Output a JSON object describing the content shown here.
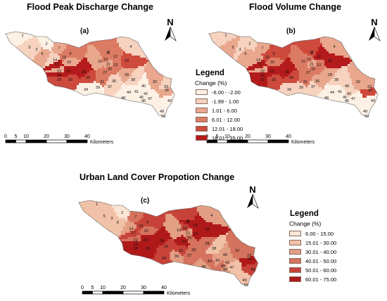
{
  "titles": {
    "peak": "Flood Peak Discharge Change",
    "volume": "Flood Volume Change",
    "urban": "Urban Land Cover Propotion Change"
  },
  "panels": {
    "a": "(a)",
    "b": "(b)",
    "c": "(c)"
  },
  "north_label": "N",
  "scale": {
    "ticks": [
      "0",
      "5",
      "10",
      "20",
      "30",
      "40"
    ],
    "unit": "Kilometers"
  },
  "legend_flood": {
    "title": "Legend",
    "subtitle": "Change (%)",
    "items": [
      {
        "label": "-6.00 - -2.00",
        "color": "#fdf0e4"
      },
      {
        "label": "-1.99 - 1.00",
        "color": "#f6d2bf"
      },
      {
        "label": "1.01 - 6.00",
        "color": "#e9a78e"
      },
      {
        "label": "6.01 - 12.00",
        "color": "#dc7b64"
      },
      {
        "label": "12.01 - 18.00",
        "color": "#cd4a3d"
      },
      {
        "label": "18.01 - 35.00",
        "color": "#b51b1c"
      }
    ]
  },
  "legend_urban": {
    "title": "Legend",
    "subtitle": "Change (%)",
    "items": [
      {
        "label": "6.00 - 15.00",
        "color": "#fbe6d6"
      },
      {
        "label": "15.01 - 30.00",
        "color": "#f1c2a8"
      },
      {
        "label": "30.01 - 40.00",
        "color": "#e39e84"
      },
      {
        "label": "40.01 - 50.00",
        "color": "#d5735e"
      },
      {
        "label": "50.01 - 60.00",
        "color": "#c74339"
      },
      {
        "label": "60.01 - 75.00",
        "color": "#b0191a"
      }
    ]
  },
  "zones": [
    {
      "id": "1"
    },
    {
      "id": "2"
    },
    {
      "id": "3"
    },
    {
      "id": "4"
    },
    {
      "id": "5"
    },
    {
      "id": "6"
    },
    {
      "id": "7"
    },
    {
      "id": "8"
    },
    {
      "id": "9"
    },
    {
      "id": "10"
    },
    {
      "id": "11"
    },
    {
      "id": "12"
    },
    {
      "id": "13"
    },
    {
      "id": "14"
    },
    {
      "id": "15"
    },
    {
      "id": "16"
    },
    {
      "id": "17"
    },
    {
      "id": "18"
    },
    {
      "id": "19"
    },
    {
      "id": "20"
    },
    {
      "id": "21"
    },
    {
      "id": "22"
    },
    {
      "id": "23"
    },
    {
      "id": "24"
    },
    {
      "id": "25"
    },
    {
      "id": "26"
    },
    {
      "id": "27"
    },
    {
      "id": "28"
    },
    {
      "id": "29"
    },
    {
      "id": "30"
    },
    {
      "id": "31"
    },
    {
      "id": "32"
    },
    {
      "id": "33"
    },
    {
      "id": "34"
    },
    {
      "id": "35"
    },
    {
      "id": "36"
    },
    {
      "id": "37"
    },
    {
      "id": "38"
    },
    {
      "id": "39"
    },
    {
      "id": "40"
    },
    {
      "id": "41"
    },
    {
      "id": "42"
    },
    {
      "id": "43"
    },
    {
      "id": "44"
    },
    {
      "id": "45"
    },
    {
      "id": "46"
    },
    {
      "id": "47"
    },
    {
      "id": "48"
    },
    {
      "id": "49"
    },
    {
      "id": "50"
    }
  ],
  "class_by_zone": {
    "a": [
      1,
      1,
      2,
      2,
      2,
      3,
      3,
      4,
      4,
      4,
      4,
      4,
      4,
      2,
      3,
      3,
      6,
      5,
      4,
      4,
      3,
      3,
      6,
      6,
      6,
      5,
      4,
      3,
      5,
      5,
      4,
      3,
      2,
      1,
      3,
      2,
      2,
      2,
      1,
      1,
      1,
      1,
      1,
      1,
      1,
      1,
      1,
      1,
      1,
      1
    ],
    "b": [
      2,
      2,
      2,
      3,
      3,
      3,
      3,
      5,
      5,
      4,
      5,
      6,
      4,
      3,
      4,
      4,
      6,
      6,
      5,
      4,
      3,
      3,
      6,
      6,
      6,
      5,
      4,
      3,
      6,
      5,
      4,
      3,
      3,
      2,
      5,
      3,
      2,
      2,
      2,
      2,
      1,
      2,
      1,
      1,
      1,
      1,
      1,
      1,
      1,
      1
    ],
    "c": [
      2,
      1,
      2,
      3,
      2,
      2,
      4,
      6,
      5,
      5,
      5,
      6,
      6,
      3,
      3,
      4,
      5,
      6,
      5,
      4,
      3,
      4,
      6,
      6,
      6,
      5,
      6,
      4,
      6,
      6,
      5,
      4,
      4,
      5,
      6,
      4,
      4,
      2,
      3,
      3,
      3,
      3,
      5,
      4,
      4,
      3,
      2,
      3,
      2,
      2
    ]
  }
}
